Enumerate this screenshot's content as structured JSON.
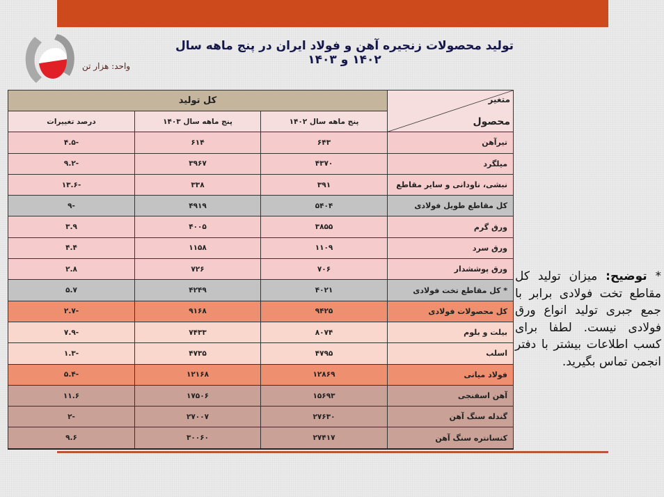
{
  "header": {
    "title": "تولید محصولات زنجیره آهن و فولاد ایران در پنج ماهه سال ۱۴۰۲ و ۱۴۰۳",
    "unit": "واحد: هزار تن",
    "logo": "iranian-steel-producers-association-logo"
  },
  "table": {
    "corner_top": "متغیر",
    "corner_bottom": "محصول",
    "group_header": "کل تولید",
    "columns": [
      "پنج ماهه سال ۱۴۰۲",
      "پنج ماهه سال ۱۴۰۳",
      "درصد تغییرات"
    ],
    "rows": [
      {
        "product": "تیرآهن",
        "y1402": "۶۴۳",
        "y1403": "۶۱۴",
        "change": "-۴.۵",
        "style": "pink"
      },
      {
        "product": "میلگرد",
        "y1402": "۴۳۷۰",
        "y1403": "۳۹۶۷",
        "change": "-۹.۲",
        "style": "pink"
      },
      {
        "product": "نبشی، ناودانی و سایر مقاطع",
        "y1402": "۳۹۱",
        "y1403": "۳۳۸",
        "change": "-۱۳.۶",
        "style": "pink"
      },
      {
        "product": "کل مقاطع طویل فولادی",
        "y1402": "۵۴۰۴",
        "y1403": "۴۹۱۹",
        "change": "-۹",
        "style": "gray"
      },
      {
        "product": "ورق گرم",
        "y1402": "۳۸۵۵",
        "y1403": "۴۰۰۵",
        "change": "۳.۹",
        "style": "pink"
      },
      {
        "product": "ورق سرد",
        "y1402": "۱۱۰۹",
        "y1403": "۱۱۵۸",
        "change": "۴.۴",
        "style": "pink"
      },
      {
        "product": "ورق پوششدار",
        "y1402": "۷۰۶",
        "y1403": "۷۲۶",
        "change": "۲.۸",
        "style": "pink"
      },
      {
        "product": "* کل مقاطع تخت فولادی",
        "y1402": "۴۰۲۱",
        "y1403": "۴۲۴۹",
        "change": "۵.۷",
        "style": "gray"
      },
      {
        "product": "کل محصولات فولادی",
        "y1402": "۹۴۲۵",
        "y1403": "۹۱۶۸",
        "change": "-۲.۷",
        "style": "orange"
      },
      {
        "product": "بیلت و بلوم",
        "y1402": "۸۰۷۴",
        "y1403": "۷۴۳۳",
        "change": "-۷.۹",
        "style": "lightpeach"
      },
      {
        "product": "اسلب",
        "y1402": "۴۷۹۵",
        "y1403": "۴۷۳۵",
        "change": "-۱.۳",
        "style": "lightpeach"
      },
      {
        "product": "فولاد میانی",
        "y1402": "۱۲۸۶۹",
        "y1403": "۱۲۱۶۸",
        "change": "-۵.۴",
        "style": "orange"
      },
      {
        "product": "آهن اسفنجی",
        "y1402": "۱۵۶۹۳",
        "y1403": "۱۷۵۰۶",
        "change": "۱۱.۶",
        "style": "brown"
      },
      {
        "product": "گندله سنگ آهن",
        "y1402": "۲۷۶۳۰",
        "y1403": "۲۷۰۰۷",
        "change": "-۲",
        "style": "brown"
      },
      {
        "product": "کنسانتره سنگ آهن",
        "y1402": "۲۷۴۱۷",
        "y1403": "۳۰۰۶۰",
        "change": "۹.۶",
        "style": "brown"
      }
    ]
  },
  "note": {
    "marker": "* ",
    "label": "توضیح:",
    "text": " میزان تولید کل مقاطع تخت فولادی برابر با جمع جبری تولید انواع ورق فولادی نیست. لطفا برای کسب اطلاعات بیشتر با دفتر انجمن تماس بگیرید."
  },
  "colors": {
    "top_bar": "#cd4a1c",
    "title": "#14164a",
    "header_group": "#c4b59c",
    "pink_row": "#f5cccb",
    "gray_row": "#c3c3c3",
    "orange_row": "#ee8f70",
    "lightpeach_row": "#f9d7cc",
    "brown_row": "#c9a196"
  }
}
